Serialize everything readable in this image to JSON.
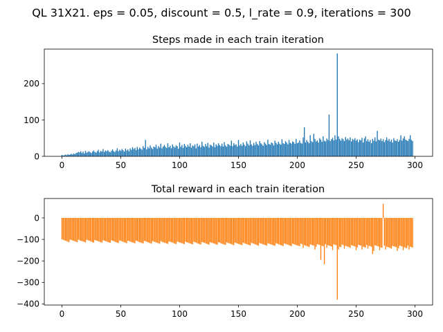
{
  "suptitle": "QL 31X21. eps = 0.05, discount = 0.5, l_rate = 0.9, iterations = 300",
  "chart_data": [
    {
      "type": "bar",
      "title": "Steps made in each train iteration",
      "color": "#1f77b4",
      "xlabel": "",
      "ylabel": "",
      "xlim": [
        -15,
        315
      ],
      "ylim": [
        0,
        295
      ],
      "xticks": [
        0,
        50,
        100,
        150,
        200,
        250,
        300
      ],
      "yticks": [
        0,
        100,
        200
      ],
      "x": "0..300 (iteration index)",
      "values": [
        4,
        2,
        3,
        5,
        3,
        6,
        4,
        5,
        7,
        5,
        8,
        6,
        9,
        10,
        12,
        11,
        14,
        9,
        13,
        8,
        15,
        10,
        12,
        14,
        11,
        9,
        13,
        16,
        12,
        10,
        14,
        18,
        11,
        15,
        13,
        20,
        12,
        16,
        14,
        17,
        13,
        11,
        15,
        19,
        14,
        12,
        16,
        22,
        14,
        18,
        15,
        20,
        17,
        13,
        21,
        16,
        19,
        14,
        22,
        18,
        25,
        20,
        23,
        17,
        26,
        19,
        24,
        21,
        18,
        28,
        23,
        45,
        19,
        26,
        22,
        30,
        24,
        20,
        27,
        25,
        32,
        21,
        28,
        24,
        35,
        22,
        27,
        31,
        26,
        23,
        36,
        25,
        29,
        22,
        33,
        27,
        24,
        30,
        28,
        21,
        38,
        26,
        31,
        23,
        34,
        29,
        25,
        32,
        27,
        36,
        24,
        30,
        28,
        33,
        22,
        35,
        27,
        31,
        25,
        40,
        29,
        26,
        34,
        28,
        37,
        24,
        32,
        30,
        27,
        38,
        25,
        33,
        29,
        36,
        31,
        28,
        35,
        27,
        39,
        30,
        26,
        34,
        32,
        29,
        43,
        28,
        36,
        31,
        33,
        27,
        45,
        30,
        34,
        29,
        38,
        32,
        28,
        41,
        35,
        30,
        44,
        33,
        29,
        37,
        31,
        40,
        34,
        30,
        42,
        36,
        33,
        29,
        39,
        35,
        31,
        46,
        34,
        32,
        38,
        36,
        30,
        43,
        37,
        33,
        40,
        35,
        32,
        47,
        36,
        34,
        42,
        38,
        33,
        45,
        37,
        35,
        41,
        39,
        34,
        48,
        36,
        38,
        44,
        37,
        35,
        52,
        80,
        38,
        45,
        40,
        36,
        58,
        42,
        39,
        62,
        48,
        41,
        44,
        38,
        50,
        46,
        40,
        55,
        43,
        41,
        49,
        45,
        115,
        42,
        47,
        51,
        44,
        58,
        46,
        283,
        55,
        48,
        43,
        50,
        47,
        42,
        53,
        46,
        49,
        44,
        52,
        41,
        48,
        45,
        50,
        43,
        47,
        39,
        46,
        44,
        51,
        38,
        49,
        55,
        42,
        47,
        40,
        45,
        36,
        48,
        43,
        52,
        41,
        70,
        46,
        44,
        49,
        42,
        47,
        39,
        45,
        52,
        43,
        48,
        41,
        46,
        38,
        50,
        44,
        42,
        47,
        40,
        45,
        58,
        43,
        49,
        55,
        46,
        44,
        42,
        48,
        58,
        45,
        42
      ]
    },
    {
      "type": "bar",
      "title": "Total reward in each train iteration",
      "color": "#ff7f0e",
      "xlabel": "",
      "ylabel": "",
      "xlim": [
        -15,
        315
      ],
      "ylim": [
        -405,
        90
      ],
      "xticks": [
        0,
        50,
        100,
        150,
        200,
        250,
        300
      ],
      "yticks": [
        -400,
        -300,
        -200,
        -100,
        0
      ],
      "x": "0..300 (iteration index)",
      "values": []
    }
  ]
}
